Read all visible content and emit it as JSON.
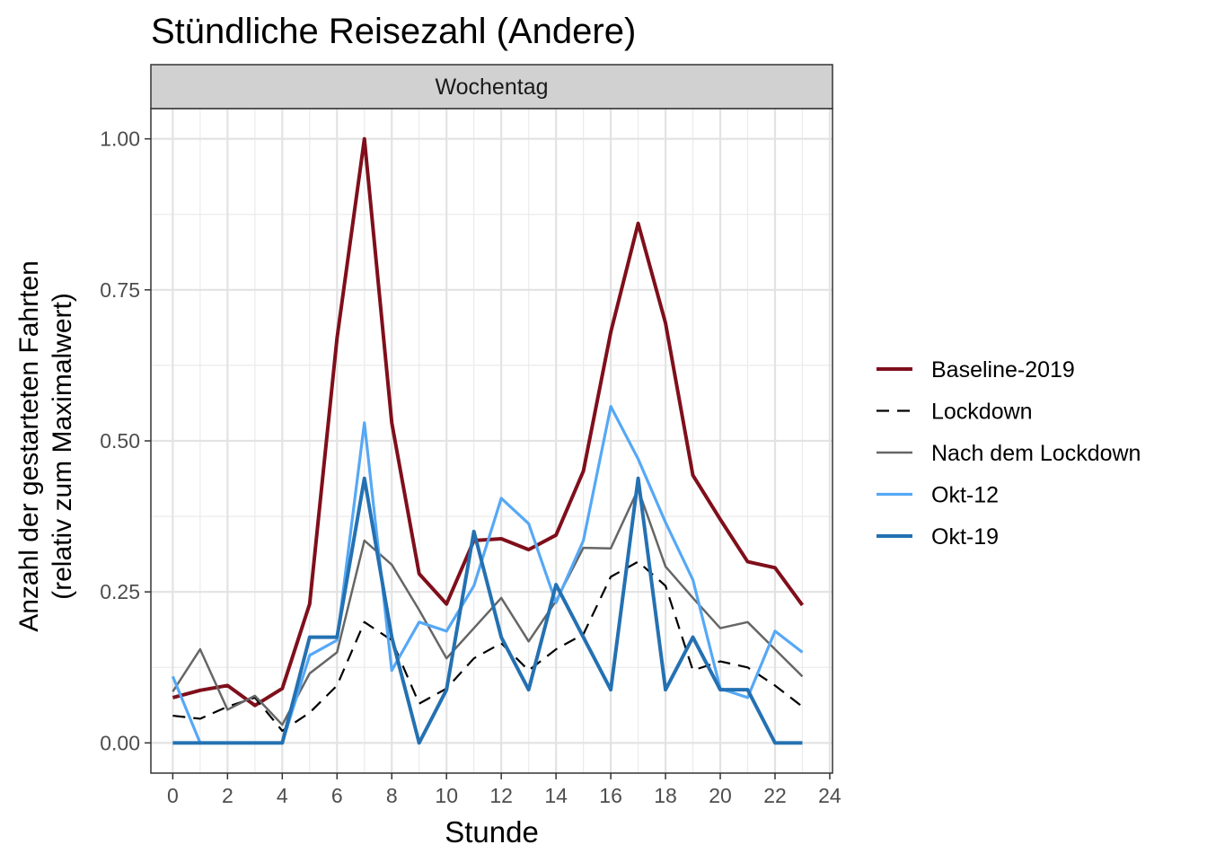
{
  "chart_data": {
    "type": "line",
    "title": "Stündliche Reisezahl (Andere)",
    "facet": "Wochentag",
    "xlabel": "Stunde",
    "ylabel_lines": [
      "Anzahl der gestarteten Fahrten",
      "(relativ zum Maximalwert)"
    ],
    "xlim": [
      -0.8,
      24.1
    ],
    "ylim": [
      -0.05,
      1.05
    ],
    "xticks": [
      0,
      2,
      4,
      6,
      8,
      10,
      12,
      14,
      16,
      18,
      20,
      22,
      24
    ],
    "xtick_labels": [
      "0",
      "2",
      "4",
      "6",
      "8",
      "10",
      "12",
      "14",
      "16",
      "18",
      "20",
      "22",
      "24"
    ],
    "yticks": [
      0,
      0.25,
      0.5,
      0.75,
      1.0
    ],
    "ytick_labels": [
      "0.00",
      "0.25",
      "0.50",
      "0.75",
      "1.00"
    ],
    "grid": true,
    "legend_position": "right",
    "x": [
      0,
      1,
      2,
      3,
      4,
      5,
      6,
      7,
      8,
      9,
      10,
      11,
      12,
      13,
      14,
      15,
      16,
      17,
      18,
      19,
      20,
      21,
      22,
      23
    ],
    "series": [
      {
        "name": "Baseline-2019",
        "color": "#7f0f1b",
        "width": 4,
        "dash": "",
        "values": [
          0.075,
          0.087,
          0.095,
          0.062,
          0.09,
          0.23,
          0.67,
          1.0,
          0.53,
          0.28,
          0.23,
          0.335,
          0.338,
          0.32,
          0.344,
          0.45,
          0.68,
          0.86,
          0.695,
          0.443,
          0.37,
          0.3,
          0.29,
          0.228
        ]
      },
      {
        "name": "Lockdown",
        "color": "#000000",
        "width": 2.2,
        "dash": "14,9",
        "values": [
          0.045,
          0.04,
          0.06,
          0.075,
          0.02,
          0.05,
          0.095,
          0.2,
          0.17,
          0.065,
          0.09,
          0.14,
          0.165,
          0.12,
          0.155,
          0.18,
          0.275,
          0.3,
          0.26,
          0.12,
          0.135,
          0.125,
          0.095,
          0.06
        ]
      },
      {
        "name": "Nach dem Lockdown",
        "color": "#666666",
        "width": 2.5,
        "dash": "",
        "values": [
          0.085,
          0.155,
          0.055,
          0.078,
          0.03,
          0.115,
          0.15,
          0.335,
          0.295,
          0.22,
          0.14,
          0.19,
          0.24,
          0.168,
          0.235,
          0.323,
          0.322,
          0.42,
          0.292,
          0.24,
          0.19,
          0.2,
          0.155,
          0.11
        ]
      },
      {
        "name": "Okt-12",
        "color": "#56a8f5",
        "width": 3.2,
        "dash": "",
        "values": [
          0.11,
          0.0,
          0.0,
          0.0,
          0.0,
          0.145,
          0.17,
          0.53,
          0.12,
          0.2,
          0.185,
          0.26,
          0.405,
          0.363,
          0.232,
          0.335,
          0.557,
          0.47,
          0.365,
          0.27,
          0.09,
          0.075,
          0.185,
          0.15
        ]
      },
      {
        "name": "Okt-19",
        "color": "#2471b2",
        "width": 4,
        "dash": "",
        "values": [
          0.0,
          0.0,
          0.0,
          0.0,
          0.0,
          0.175,
          0.175,
          0.438,
          0.175,
          0.0,
          0.088,
          0.35,
          0.175,
          0.088,
          0.262,
          0.175,
          0.088,
          0.438,
          0.088,
          0.175,
          0.088,
          0.088,
          0.0,
          0.0
        ]
      }
    ]
  }
}
